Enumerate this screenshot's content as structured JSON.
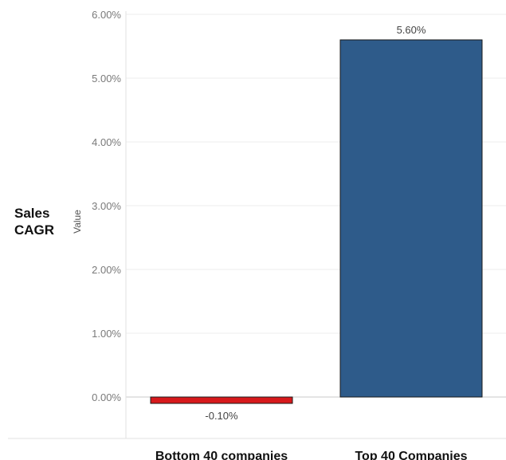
{
  "chart_data": {
    "type": "bar",
    "row_header": [
      "Sales",
      "CAGR"
    ],
    "ylabel": "Value",
    "categories": [
      "Bottom 40 companies",
      "Top 40 Companies"
    ],
    "values": [
      -0.1,
      5.6
    ],
    "value_labels": [
      "-0.10%",
      "5.60%"
    ],
    "bar_colors": [
      "#d7191c",
      "#2e5b8a"
    ],
    "ylim": [
      -0.7,
      6.0
    ],
    "yticks": [
      0,
      1,
      2,
      3,
      4,
      5,
      6
    ],
    "ytick_labels": [
      "0.00%",
      "1.00%",
      "2.00%",
      "3.00%",
      "4.00%",
      "5.00%",
      "6.00%"
    ],
    "grid": true
  }
}
